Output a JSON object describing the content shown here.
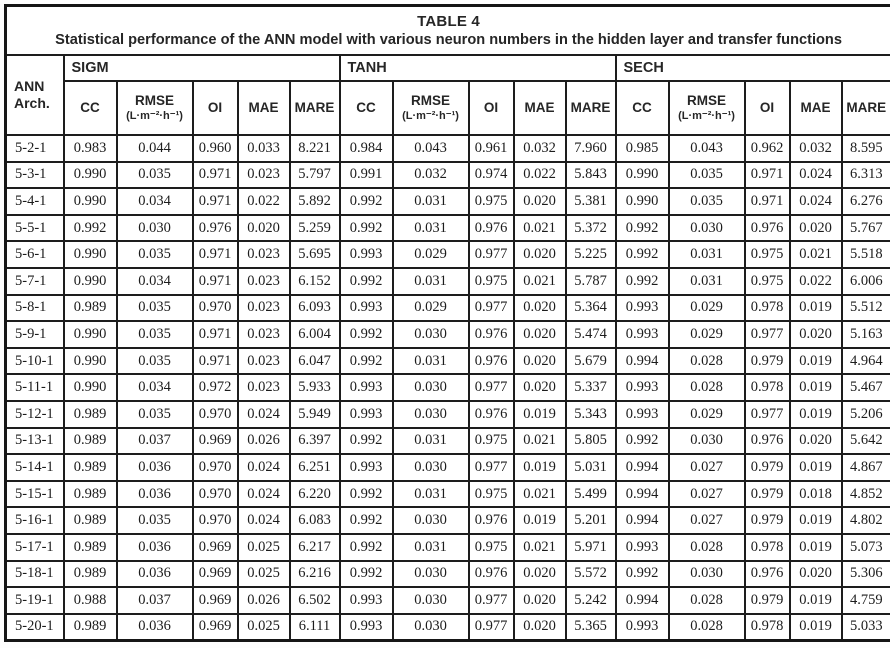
{
  "table": {
    "title": "TABLE 4",
    "subtitle": "Statistical performance of the ANN model with various neuron numbers in the hidden layer and transfer functions",
    "row_header_line1": "ANN",
    "row_header_line2": "Arch.",
    "groups": [
      "SIGM",
      "TANH",
      "SECH"
    ],
    "sub_columns": [
      {
        "label": "CC",
        "unit": ""
      },
      {
        "label": "RMSE",
        "unit": "(L·m⁻²·h⁻¹)"
      },
      {
        "label": "OI",
        "unit": ""
      },
      {
        "label": "MAE",
        "unit": ""
      },
      {
        "label": "MARE",
        "unit": ""
      }
    ],
    "rows": [
      {
        "arch": "5-2-1",
        "values": [
          [
            "0.983",
            "0.044",
            "0.960",
            "0.033",
            "8.221"
          ],
          [
            "0.984",
            "0.043",
            "0.961",
            "0.032",
            "7.960"
          ],
          [
            "0.985",
            "0.043",
            "0.962",
            "0.032",
            "8.595"
          ]
        ]
      },
      {
        "arch": "5-3-1",
        "values": [
          [
            "0.990",
            "0.035",
            "0.971",
            "0.023",
            "5.797"
          ],
          [
            "0.991",
            "0.032",
            "0.974",
            "0.022",
            "5.843"
          ],
          [
            "0.990",
            "0.035",
            "0.971",
            "0.024",
            "6.313"
          ]
        ]
      },
      {
        "arch": "5-4-1",
        "values": [
          [
            "0.990",
            "0.034",
            "0.971",
            "0.022",
            "5.892"
          ],
          [
            "0.992",
            "0.031",
            "0.975",
            "0.020",
            "5.381"
          ],
          [
            "0.990",
            "0.035",
            "0.971",
            "0.024",
            "6.276"
          ]
        ]
      },
      {
        "arch": "5-5-1",
        "values": [
          [
            "0.992",
            "0.030",
            "0.976",
            "0.020",
            "5.259"
          ],
          [
            "0.992",
            "0.031",
            "0.976",
            "0.021",
            "5.372"
          ],
          [
            "0.992",
            "0.030",
            "0.976",
            "0.020",
            "5.767"
          ]
        ]
      },
      {
        "arch": "5-6-1",
        "values": [
          [
            "0.990",
            "0.035",
            "0.971",
            "0.023",
            "5.695"
          ],
          [
            "0.993",
            "0.029",
            "0.977",
            "0.020",
            "5.225"
          ],
          [
            "0.992",
            "0.031",
            "0.975",
            "0.021",
            "5.518"
          ]
        ]
      },
      {
        "arch": "5-7-1",
        "values": [
          [
            "0.990",
            "0.034",
            "0.971",
            "0.023",
            "6.152"
          ],
          [
            "0.992",
            "0.031",
            "0.975",
            "0.021",
            "5.787"
          ],
          [
            "0.992",
            "0.031",
            "0.975",
            "0.022",
            "6.006"
          ]
        ]
      },
      {
        "arch": "5-8-1",
        "values": [
          [
            "0.989",
            "0.035",
            "0.970",
            "0.023",
            "6.093"
          ],
          [
            "0.993",
            "0.029",
            "0.977",
            "0.020",
            "5.364"
          ],
          [
            "0.993",
            "0.029",
            "0.978",
            "0.019",
            "5.512"
          ]
        ]
      },
      {
        "arch": "5-9-1",
        "values": [
          [
            "0.990",
            "0.035",
            "0.971",
            "0.023",
            "6.004"
          ],
          [
            "0.992",
            "0.030",
            "0.976",
            "0.020",
            "5.474"
          ],
          [
            "0.993",
            "0.029",
            "0.977",
            "0.020",
            "5.163"
          ]
        ]
      },
      {
        "arch": "5-10-1",
        "values": [
          [
            "0.990",
            "0.035",
            "0.971",
            "0.023",
            "6.047"
          ],
          [
            "0.992",
            "0.031",
            "0.976",
            "0.020",
            "5.679"
          ],
          [
            "0.994",
            "0.028",
            "0.979",
            "0.019",
            "4.964"
          ]
        ]
      },
      {
        "arch": "5-11-1",
        "values": [
          [
            "0.990",
            "0.034",
            "0.972",
            "0.023",
            "5.933"
          ],
          [
            "0.993",
            "0.030",
            "0.977",
            "0.020",
            "5.337"
          ],
          [
            "0.993",
            "0.028",
            "0.978",
            "0.019",
            "5.467"
          ]
        ]
      },
      {
        "arch": "5-12-1",
        "values": [
          [
            "0.989",
            "0.035",
            "0.970",
            "0.024",
            "5.949"
          ],
          [
            "0.993",
            "0.030",
            "0.976",
            "0.019",
            "5.343"
          ],
          [
            "0.993",
            "0.029",
            "0.977",
            "0.019",
            "5.206"
          ]
        ]
      },
      {
        "arch": "5-13-1",
        "values": [
          [
            "0.989",
            "0.037",
            "0.969",
            "0.026",
            "6.397"
          ],
          [
            "0.992",
            "0.031",
            "0.975",
            "0.021",
            "5.805"
          ],
          [
            "0.992",
            "0.030",
            "0.976",
            "0.020",
            "5.642"
          ]
        ]
      },
      {
        "arch": "5-14-1",
        "values": [
          [
            "0.989",
            "0.036",
            "0.970",
            "0.024",
            "6.251"
          ],
          [
            "0.993",
            "0.030",
            "0.977",
            "0.019",
            "5.031"
          ],
          [
            "0.994",
            "0.027",
            "0.979",
            "0.019",
            "4.867"
          ]
        ]
      },
      {
        "arch": "5-15-1",
        "values": [
          [
            "0.989",
            "0.036",
            "0.970",
            "0.024",
            "6.220"
          ],
          [
            "0.992",
            "0.031",
            "0.975",
            "0.021",
            "5.499"
          ],
          [
            "0.994",
            "0.027",
            "0.979",
            "0.018",
            "4.852"
          ]
        ]
      },
      {
        "arch": "5-16-1",
        "values": [
          [
            "0.989",
            "0.035",
            "0.970",
            "0.024",
            "6.083"
          ],
          [
            "0.992",
            "0.030",
            "0.976",
            "0.019",
            "5.201"
          ],
          [
            "0.994",
            "0.027",
            "0.979",
            "0.019",
            "4.802"
          ]
        ]
      },
      {
        "arch": "5-17-1",
        "values": [
          [
            "0.989",
            "0.036",
            "0.969",
            "0.025",
            "6.217"
          ],
          [
            "0.992",
            "0.031",
            "0.975",
            "0.021",
            "5.971"
          ],
          [
            "0.993",
            "0.028",
            "0.978",
            "0.019",
            "5.073"
          ]
        ]
      },
      {
        "arch": "5-18-1",
        "values": [
          [
            "0.989",
            "0.036",
            "0.969",
            "0.025",
            "6.216"
          ],
          [
            "0.992",
            "0.030",
            "0.976",
            "0.020",
            "5.572"
          ],
          [
            "0.992",
            "0.030",
            "0.976",
            "0.020",
            "5.306"
          ]
        ]
      },
      {
        "arch": "5-19-1",
        "values": [
          [
            "0.988",
            "0.037",
            "0.969",
            "0.026",
            "6.502"
          ],
          [
            "0.993",
            "0.030",
            "0.977",
            "0.020",
            "5.242"
          ],
          [
            "0.994",
            "0.028",
            "0.979",
            "0.019",
            "4.759"
          ]
        ]
      },
      {
        "arch": "5-20-1",
        "values": [
          [
            "0.989",
            "0.036",
            "0.969",
            "0.025",
            "6.111"
          ],
          [
            "0.993",
            "0.030",
            "0.977",
            "0.020",
            "5.365"
          ],
          [
            "0.993",
            "0.028",
            "0.978",
            "0.019",
            "5.033"
          ]
        ]
      }
    ]
  }
}
